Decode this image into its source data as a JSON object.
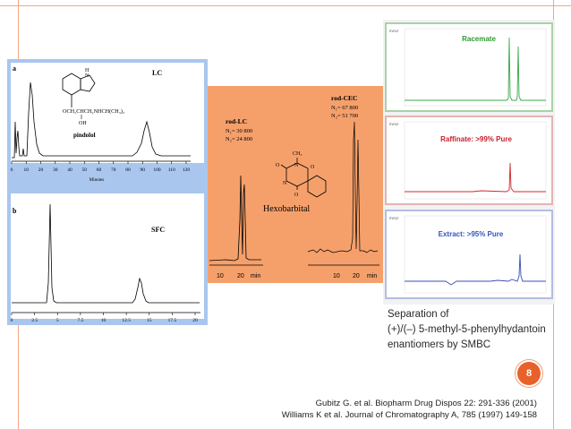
{
  "slide": {
    "page_number": "8"
  },
  "citations": [
    "Gubitz G. et al. Biopharm Drug Dispos 22: 291-336 (2001)",
    "Williams K et al. Journal of Chromatography A, 785 (1997) 149-158"
  ],
  "colors": {
    "accent": "#e9612a",
    "frame": "#f4a582",
    "blue_panel": "#a9c6ef",
    "orange_panel": "#f5a06b"
  },
  "panel_lc_sfc": {
    "lc": {
      "letter": "a",
      "tag": "LC",
      "compound": "pindolol",
      "structure_labels": {
        "nh": "H",
        "n": "N",
        "side_chain": "OCH₂CHCH₂NHCH(CH₃)₂",
        "oh": "OH"
      },
      "x_ticks": [
        "0",
        "10",
        "20",
        "30",
        "40",
        "50",
        "60",
        "70",
        "80",
        "90",
        "100",
        "110",
        "120"
      ],
      "x_label": "Minutes"
    },
    "sfc": {
      "letter": "b",
      "tag": "SFC",
      "x_ticks": [
        "0",
        "2.5",
        "5",
        "7.5",
        "10",
        "12.5",
        "15",
        "17.5",
        "20"
      ]
    }
  },
  "panel_cec": {
    "rod_lc": {
      "title": "rod-LC",
      "n1": "N₁= 30 800",
      "n2": "N₂= 24 800"
    },
    "rod_cec": {
      "title": "rod-CEC",
      "n1": "N₁= 67 800",
      "n2": "N₂= 51 700"
    },
    "compound": "Hexobarbital",
    "structure_labels": {
      "ch3": "CH₃",
      "o_top": "O",
      "o_left": "O",
      "o_bottom": "O",
      "n_top": "N",
      "n_bottom": "N"
    },
    "left_axis": {
      "ticks": [
        "10",
        "20"
      ],
      "unit": "min"
    },
    "right_axis": {
      "ticks": [
        "10",
        "20"
      ],
      "unit": "min"
    }
  },
  "panel_smbc": {
    "y_unit": "mAU",
    "charts": [
      {
        "title": "Racemate",
        "title_color": "#2e9a34",
        "line_color": "#3aa84a"
      },
      {
        "title": "Raffinate: >99% Pure",
        "title_color": "#c8202a",
        "line_color": "#d02828"
      },
      {
        "title": "Extract: >95% Pure",
        "title_color": "#3355bb",
        "line_color": "#3a4fb8"
      }
    ],
    "caption": [
      "Separation of",
      "(+)/(–) 5-methyl-5-phenylhydantoin",
      "enantiomers by SMBC"
    ]
  }
}
